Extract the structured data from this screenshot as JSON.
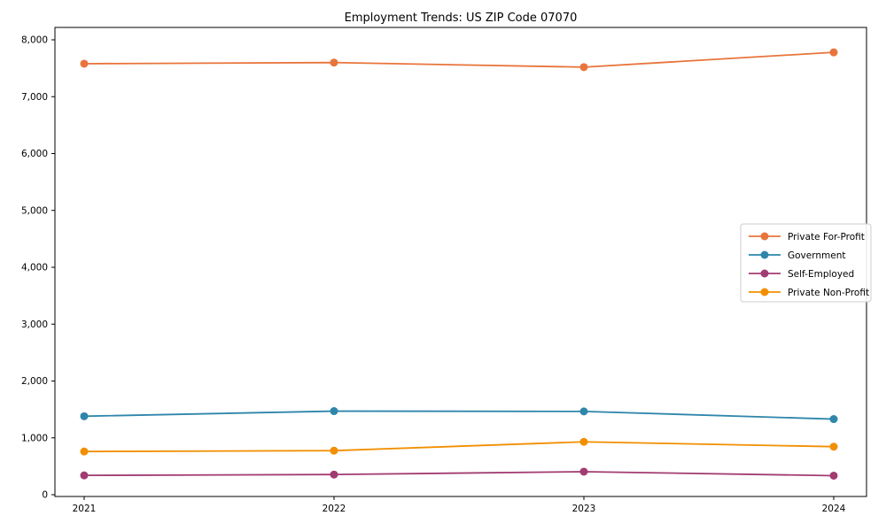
{
  "chart_data": {
    "type": "line",
    "title": "Employment Trends: US ZIP Code 07070",
    "xlabel": "",
    "ylabel": "",
    "categories": [
      "2021",
      "2022",
      "2023",
      "2024"
    ],
    "series": [
      {
        "name": "Private For-Profit",
        "color": "#E8743B",
        "values": [
          7580,
          7600,
          7520,
          7780
        ]
      },
      {
        "name": "Government",
        "color": "#2E86AB",
        "values": [
          1380,
          1470,
          1465,
          1330
        ]
      },
      {
        "name": "Self-Employed",
        "color": "#A23B72",
        "values": [
          340,
          355,
          405,
          335
        ]
      },
      {
        "name": "Private Non-Profit",
        "color": "#F18F01",
        "values": [
          760,
          775,
          930,
          845
        ]
      }
    ],
    "ylim": [
      0,
      8000
    ],
    "ytick_step": 1000,
    "ytick_labels": [
      "0",
      "1,000",
      "2,000",
      "3,000",
      "4,000",
      "5,000",
      "6,000",
      "7,000",
      "8,000"
    ],
    "grid": false,
    "legend_position": "center right",
    "marker": "circle",
    "axis_color": "#000000",
    "legend_border_color": "#cccccc",
    "background_color": "#ffffff"
  }
}
